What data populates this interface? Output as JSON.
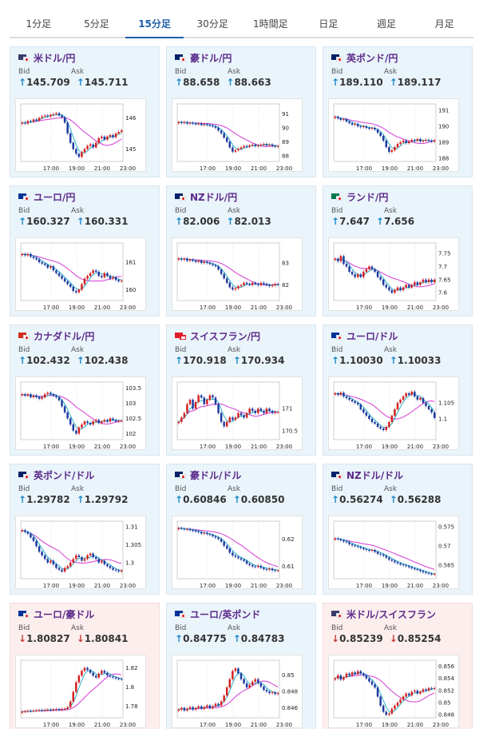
{
  "tabs": [
    {
      "label": "1分足",
      "active": false
    },
    {
      "label": "5分足",
      "active": false
    },
    {
      "label": "15分足",
      "active": true
    },
    {
      "label": "30分足",
      "active": false
    },
    {
      "label": "1時間足",
      "active": false
    },
    {
      "label": "日足",
      "active": false
    },
    {
      "label": "週足",
      "active": false
    },
    {
      "label": "月足",
      "active": false
    }
  ],
  "labels": {
    "bid": "Bid",
    "ask": "Ask"
  },
  "colors": {
    "up": "#1d8ac8",
    "down": "#c43a3a",
    "pair": "#5b2a8a",
    "bull": "#d42020",
    "bear": "#1f3aa0",
    "ma_long": "#d43ad4",
    "ma_short": "#2bb4c8"
  },
  "x_ticks": [
    "17:00",
    "19:00",
    "21:00",
    "23:00"
  ],
  "cards": [
    {
      "pair": "米ドル/円",
      "flag": [
        "#3c3b6e",
        "#ffffff"
      ],
      "bid": "145.709",
      "ask": "145.711",
      "dir": "up",
      "theme": "up",
      "chart": {
        "ylim": [
          144.6,
          146.45
        ],
        "yticks": [
          "146",
          "145"
        ],
        "ytick_values": [
          146,
          145
        ],
        "close": [
          145.85,
          145.82,
          145.9,
          145.88,
          145.95,
          145.92,
          146.0,
          146.05,
          146.08,
          146.05,
          146.1,
          146.12,
          146.15,
          146.08,
          146.02,
          145.85,
          145.5,
          145.2,
          145.0,
          144.85,
          144.75,
          144.9,
          145.0,
          145.1,
          145.15,
          145.05,
          145.2,
          145.35,
          145.4,
          145.3,
          145.4,
          145.45,
          145.38,
          145.5,
          145.55,
          145.6
        ]
      }
    },
    {
      "pair": "豪ドル/円",
      "flag": [
        "#012169",
        "#ffffff"
      ],
      "bid": "88.658",
      "ask": "88.663",
      "dir": "up",
      "theme": "up",
      "chart": {
        "ylim": [
          87.6,
          91.7
        ],
        "yticks": [
          "91",
          "90",
          "89",
          "88"
        ],
        "ytick_values": [
          91,
          90,
          89,
          88
        ],
        "close": [
          90.4,
          90.35,
          90.4,
          90.3,
          90.35,
          90.3,
          90.25,
          90.3,
          90.2,
          90.25,
          90.2,
          90.15,
          90.1,
          90.0,
          89.8,
          89.6,
          89.3,
          89.0,
          88.6,
          88.3,
          88.4,
          88.5,
          88.6,
          88.7,
          88.65,
          88.75,
          88.8,
          88.7,
          88.75,
          88.8,
          88.85,
          88.75,
          88.8,
          88.7,
          88.65,
          88.7
        ]
      }
    },
    {
      "pair": "英ポンド/円",
      "flag": [
        "#012169",
        "#ffffff"
      ],
      "bid": "189.110",
      "ask": "189.117",
      "dir": "up",
      "theme": "up",
      "chart": {
        "ylim": [
          187.8,
          191.4
        ],
        "yticks": [
          "191",
          "190",
          "189",
          "188"
        ],
        "ytick_values": [
          191,
          190,
          189,
          188
        ],
        "close": [
          190.6,
          190.5,
          190.4,
          190.45,
          190.3,
          190.2,
          190.1,
          190.15,
          190.0,
          189.95,
          190.0,
          189.9,
          189.85,
          189.9,
          189.8,
          189.6,
          189.4,
          189.1,
          188.7,
          188.4,
          188.5,
          188.7,
          188.9,
          189.0,
          189.1,
          188.95,
          189.05,
          189.15,
          189.1,
          189.2,
          189.05,
          189.1,
          189.15,
          189.1,
          189.05,
          189.12
        ]
      }
    },
    {
      "pair": "ユーロ/円",
      "flag": [
        "#003399",
        "#ffffff"
      ],
      "bid": "160.327",
      "ask": "160.331",
      "dir": "up",
      "theme": "up",
      "chart": {
        "ylim": [
          159.6,
          161.7
        ],
        "yticks": [
          "161",
          "160"
        ],
        "ytick_values": [
          161,
          160
        ],
        "close": [
          161.3,
          161.25,
          161.3,
          161.2,
          161.15,
          161.1,
          161.0,
          160.95,
          160.9,
          160.8,
          160.85,
          160.7,
          160.6,
          160.5,
          160.4,
          160.3,
          160.2,
          160.1,
          159.95,
          159.9,
          160.0,
          160.2,
          160.4,
          160.5,
          160.6,
          160.7,
          160.65,
          160.5,
          160.45,
          160.6,
          160.5,
          160.4,
          160.45,
          160.35,
          160.3,
          160.33
        ]
      }
    },
    {
      "pair": "NZドル/円",
      "flag": [
        "#012169",
        "#ffffff"
      ],
      "bid": "82.006",
      "ask": "82.013",
      "dir": "up",
      "theme": "up",
      "chart": {
        "ylim": [
          81.3,
          83.9
        ],
        "yticks": [
          "83",
          "82"
        ],
        "ytick_values": [
          83,
          82
        ],
        "close": [
          83.2,
          83.15,
          83.2,
          83.1,
          83.15,
          83.1,
          83.05,
          83.1,
          83.0,
          83.05,
          83.0,
          82.95,
          82.9,
          82.85,
          82.7,
          82.5,
          82.3,
          82.1,
          81.9,
          81.8,
          81.85,
          81.95,
          82.0,
          82.1,
          82.05,
          82.0,
          82.1,
          82.05,
          82.0,
          82.1,
          82.05,
          82.0,
          81.95,
          82.0,
          82.05,
          82.01
        ]
      }
    },
    {
      "pair": "ランド/円",
      "flag": [
        "#007a4d",
        "#ffb612"
      ],
      "bid": "7.647",
      "ask": "7.656",
      "dir": "up",
      "theme": "up",
      "chart": {
        "ylim": [
          7.57,
          7.79
        ],
        "yticks": [
          "7.75",
          "7.7",
          "7.65",
          "7.6"
        ],
        "ytick_values": [
          7.75,
          7.7,
          7.65,
          7.6
        ],
        "close": [
          7.73,
          7.72,
          7.74,
          7.71,
          7.7,
          7.68,
          7.67,
          7.66,
          7.67,
          7.66,
          7.68,
          7.69,
          7.7,
          7.69,
          7.68,
          7.66,
          7.65,
          7.63,
          7.62,
          7.61,
          7.6,
          7.61,
          7.62,
          7.61,
          7.62,
          7.63,
          7.62,
          7.63,
          7.64,
          7.63,
          7.64,
          7.65,
          7.64,
          7.65,
          7.64,
          7.65
        ]
      }
    },
    {
      "pair": "カナダドル/円",
      "flag": [
        "#d52b1e",
        "#ffffff"
      ],
      "bid": "102.432",
      "ask": "102.438",
      "dir": "up",
      "theme": "up",
      "chart": {
        "ylim": [
          101.8,
          103.7
        ],
        "yticks": [
          "103.5",
          "103",
          "102.5",
          "102"
        ],
        "ytick_values": [
          103.5,
          103,
          102.5,
          102
        ],
        "close": [
          103.3,
          103.25,
          103.3,
          103.2,
          103.25,
          103.2,
          103.15,
          103.2,
          103.3,
          103.35,
          103.3,
          103.25,
          103.2,
          103.1,
          102.9,
          102.7,
          102.5,
          102.3,
          102.1,
          102.0,
          102.2,
          102.3,
          102.4,
          102.35,
          102.3,
          102.4,
          102.45,
          102.35,
          102.4,
          102.45,
          102.4,
          102.5,
          102.45,
          102.4,
          102.42,
          102.43
        ]
      }
    },
    {
      "pair": "スイスフラン/円",
      "flag": [
        "#e41d2d",
        "#e41d2d"
      ],
      "bid": "170.918",
      "ask": "170.934",
      "dir": "up",
      "theme": "up",
      "swiss": true,
      "chart": {
        "ylim": [
          170.3,
          171.6
        ],
        "yticks": [
          "171",
          "170.5"
        ],
        "ytick_values": [
          171,
          170.5
        ],
        "close": [
          170.7,
          170.8,
          170.9,
          171.1,
          171.2,
          171.0,
          171.15,
          171.3,
          171.25,
          171.1,
          171.2,
          171.3,
          171.25,
          171.1,
          170.9,
          170.7,
          170.6,
          170.7,
          170.8,
          170.75,
          170.8,
          170.9,
          170.85,
          170.8,
          170.9,
          171.0,
          170.95,
          170.9,
          171.0,
          170.95,
          170.9,
          171.0,
          170.95,
          170.9,
          170.92,
          170.92
        ]
      }
    },
    {
      "pair": "ユーロ/ドル",
      "flag": [
        "#003399",
        "#ffffff"
      ],
      "bid": "1.10030",
      "ask": "1.10033",
      "dir": "up",
      "theme": "up",
      "chart": {
        "ylim": [
          1.0935,
          1.1115
        ],
        "yticks": [
          "1.105",
          "1.1"
        ],
        "ytick_values": [
          1.105,
          1.1
        ],
        "close": [
          1.108,
          1.1075,
          1.1082,
          1.107,
          1.1065,
          1.106,
          1.1055,
          1.105,
          1.1045,
          1.103,
          1.102,
          1.101,
          1.1,
          1.099,
          1.0985,
          1.0975,
          1.097,
          1.0965,
          1.0975,
          1.099,
          1.101,
          1.103,
          1.105,
          1.106,
          1.107,
          1.108,
          1.1075,
          1.1085,
          1.107,
          1.106,
          1.1065,
          1.105,
          1.104,
          1.103,
          1.102,
          1.1003
        ]
      }
    },
    {
      "pair": "英ポンド/ドル",
      "flag": [
        "#012169",
        "#ffffff"
      ],
      "bid": "1.29782",
      "ask": "1.29792",
      "dir": "up",
      "theme": "up",
      "chart": {
        "ylim": [
          1.2955,
          1.3115
        ],
        "yticks": [
          "1.31",
          "1.305",
          "1.3"
        ],
        "ytick_values": [
          1.31,
          1.305,
          1.3
        ],
        "close": [
          1.309,
          1.3085,
          1.308,
          1.307,
          1.306,
          1.3045,
          1.303,
          1.302,
          1.301,
          1.3,
          1.3005,
          1.2995,
          1.2985,
          1.298,
          1.2975,
          1.2985,
          1.299,
          1.3,
          1.301,
          1.302,
          1.3015,
          1.3005,
          1.301,
          1.302,
          1.3025,
          1.3015,
          1.301,
          1.3,
          1.3005,
          1.2995,
          1.299,
          1.2985,
          1.298,
          1.2978,
          1.2975,
          1.2978
        ]
      }
    },
    {
      "pair": "豪ドル/ドル",
      "flag": [
        "#012169",
        "#ffffff"
      ],
      "bid": "0.60846",
      "ask": "0.60850",
      "dir": "up",
      "theme": "up",
      "chart": {
        "ylim": [
          0.6055,
          0.6265
        ],
        "yticks": [
          "0.62",
          "0.61"
        ],
        "ytick_values": [
          0.62,
          0.61
        ],
        "close": [
          0.624,
          0.6238,
          0.6235,
          0.6236,
          0.6232,
          0.623,
          0.6228,
          0.6225,
          0.622,
          0.6222,
          0.6218,
          0.6215,
          0.621,
          0.6205,
          0.62,
          0.619,
          0.6175,
          0.6165,
          0.615,
          0.614,
          0.6135,
          0.613,
          0.6125,
          0.612,
          0.611,
          0.6105,
          0.61,
          0.6098,
          0.6102,
          0.6095,
          0.609,
          0.6088,
          0.6092,
          0.6086,
          0.6085,
          0.6085
        ]
      }
    },
    {
      "pair": "NZドル/ドル",
      "flag": [
        "#012169",
        "#ffffff"
      ],
      "bid": "0.56274",
      "ask": "0.56288",
      "dir": "up",
      "theme": "up",
      "chart": {
        "ylim": [
          0.5615,
          0.5765
        ],
        "yticks": [
          "0.575",
          "0.57",
          "0.565"
        ],
        "ytick_values": [
          0.575,
          0.57,
          0.565
        ],
        "close": [
          0.572,
          0.5718,
          0.5715,
          0.5712,
          0.571,
          0.5705,
          0.5702,
          0.57,
          0.5698,
          0.5695,
          0.5692,
          0.569,
          0.5688,
          0.569,
          0.5685,
          0.568,
          0.5678,
          0.5675,
          0.567,
          0.5665,
          0.5662,
          0.5658,
          0.5655,
          0.5652,
          0.565,
          0.5648,
          0.5645,
          0.5642,
          0.564,
          0.5638,
          0.5635,
          0.5632,
          0.563,
          0.5628,
          0.5627,
          0.5627
        ]
      }
    },
    {
      "pair": "ユーロ/豪ドル",
      "flag": [
        "#003399",
        "#012169"
      ],
      "bid": "1.80827",
      "ask": "1.80841",
      "dir": "down",
      "theme": "down",
      "chart": {
        "ylim": [
          1.768,
          1.828
        ],
        "yticks": [
          "1.82",
          "1.8",
          "1.78"
        ],
        "ytick_values": [
          1.82,
          1.8,
          1.78
        ],
        "close": [
          1.7745,
          1.7748,
          1.7752,
          1.775,
          1.7755,
          1.7758,
          1.776,
          1.7756,
          1.7762,
          1.7765,
          1.7762,
          1.7768,
          1.777,
          1.7765,
          1.7772,
          1.7775,
          1.779,
          1.785,
          1.795,
          1.805,
          1.812,
          1.817,
          1.82,
          1.818,
          1.815,
          1.812,
          1.81,
          1.814,
          1.817,
          1.815,
          1.812,
          1.811,
          1.81,
          1.809,
          1.8085,
          1.8083
        ]
      }
    },
    {
      "pair": "ユーロ/英ポンド",
      "flag": [
        "#003399",
        "#012169"
      ],
      "bid": "0.84775",
      "ask": "0.84783",
      "dir": "up",
      "theme": "up",
      "chart": {
        "ylim": [
          0.8448,
          0.8518
        ],
        "yticks": [
          "0.85",
          "0.848",
          "0.846"
        ],
        "ytick_values": [
          0.85,
          0.848,
          0.846
        ],
        "close": [
          0.8458,
          0.846,
          0.8457,
          0.8459,
          0.8461,
          0.8458,
          0.846,
          0.8462,
          0.8459,
          0.8461,
          0.8463,
          0.846,
          0.8462,
          0.8465,
          0.8463,
          0.8468,
          0.8475,
          0.8485,
          0.8495,
          0.8505,
          0.8508,
          0.8502,
          0.8495,
          0.849,
          0.8485,
          0.8488,
          0.8492,
          0.8495,
          0.849,
          0.8486,
          0.8482,
          0.848,
          0.8478,
          0.8479,
          0.8477,
          0.8478
        ]
      }
    },
    {
      "pair": "米ドル/スイスフラン",
      "flag": [
        "#3c3b6e",
        "#e41d2d"
      ],
      "bid": "0.85239",
      "ask": "0.85254",
      "dir": "down",
      "theme": "down",
      "chart": {
        "ylim": [
          0.8475,
          0.857
        ],
        "yticks": [
          "0.856",
          "0.854",
          "0.852",
          "0.85",
          "0.848"
        ],
        "ytick_values": [
          0.856,
          0.854,
          0.852,
          0.85,
          0.848
        ],
        "close": [
          0.854,
          0.8545,
          0.8538,
          0.8542,
          0.8548,
          0.8545,
          0.855,
          0.8547,
          0.8552,
          0.8548,
          0.8545,
          0.854,
          0.8535,
          0.853,
          0.8525,
          0.851,
          0.8495,
          0.8485,
          0.848,
          0.8482,
          0.849,
          0.8495,
          0.85,
          0.8505,
          0.851,
          0.8515,
          0.8512,
          0.8518,
          0.852,
          0.8515,
          0.8518,
          0.8522,
          0.852,
          0.8524,
          0.8523,
          0.8524
        ]
      }
    }
  ]
}
